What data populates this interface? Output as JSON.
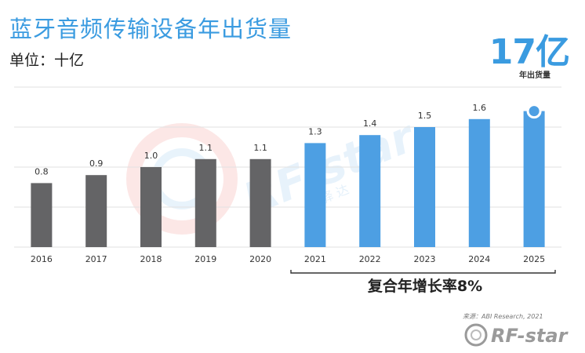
{
  "header": {
    "title": "蓝牙音频传输设备年出货量",
    "unit": "单位：十亿",
    "big_number": "17亿",
    "big_caption": "年出货量"
  },
  "annotation": {
    "cagr": "复合年增长率8%"
  },
  "source": "来源：ABI Research, 2021",
  "watermark": {
    "text": "RF-star",
    "subtext": "驿 达"
  },
  "colors": {
    "historical": "#646466",
    "forecast": "#4d9fe3",
    "title": "#3a9be0",
    "gridline": "#e2e2e2"
  },
  "chart_data": {
    "type": "bar",
    "categories": [
      "2016",
      "2017",
      "2018",
      "2019",
      "2020",
      "2021",
      "2022",
      "2023",
      "2024",
      "2025"
    ],
    "values": [
      0.8,
      0.9,
      1.0,
      1.1,
      1.1,
      1.3,
      1.4,
      1.5,
      1.6,
      1.7
    ],
    "data_labels": [
      "0.8",
      "0.9",
      "1.0",
      "1.1",
      "1.1",
      "1.3",
      "1.4",
      "1.5",
      "1.6",
      ""
    ],
    "forecast_from_index": 5,
    "highlight_index": 9,
    "ylim": [
      0,
      2.0
    ],
    "grid": true,
    "xlabel": "",
    "ylabel": ""
  }
}
